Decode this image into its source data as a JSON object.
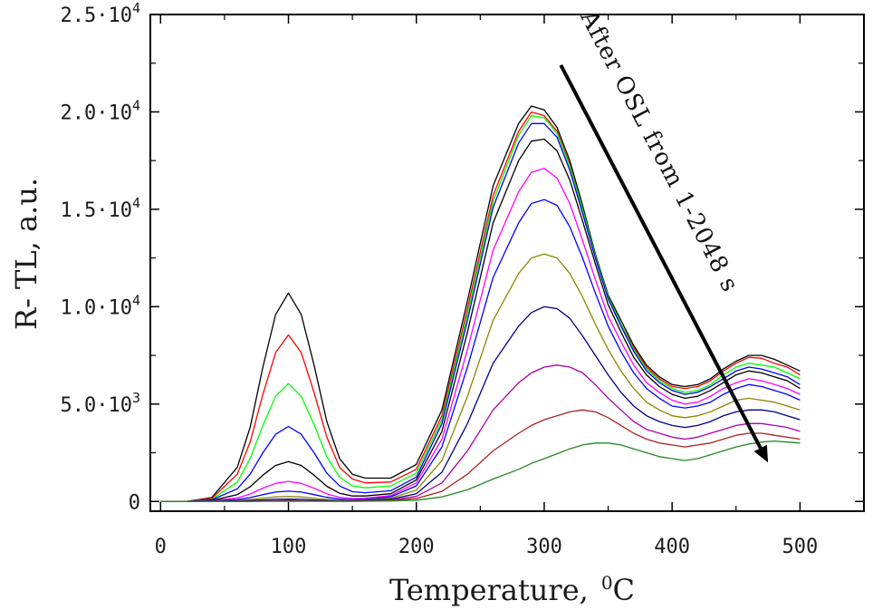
{
  "chart_data": {
    "type": "line",
    "title": "",
    "xlabel": "Temperature,",
    "xlabel_unit_sup": "0",
    "xlabel_unit": "C",
    "ylabel": "R-  TL,  a.u.",
    "xlim": [
      -8,
      550
    ],
    "ylim": [
      -500,
      25000
    ],
    "grid": false,
    "legend": "none",
    "x_ticks": [
      {
        "value": 0,
        "label": "0"
      },
      {
        "value": 100,
        "label": "100"
      },
      {
        "value": 200,
        "label": "200"
      },
      {
        "value": 300,
        "label": "300"
      },
      {
        "value": 400,
        "label": "400"
      },
      {
        "value": 500,
        "label": "500"
      }
    ],
    "y_ticks": [
      {
        "value": 0,
        "mant": "0",
        "exp": ""
      },
      {
        "value": 5000,
        "mant": "5.0·10",
        "exp": "3"
      },
      {
        "value": 10000,
        "mant": "1.0·10",
        "exp": "4"
      },
      {
        "value": 15000,
        "mant": "1.5·10",
        "exp": "4"
      },
      {
        "value": 20000,
        "mant": "2.0·10",
        "exp": "4"
      },
      {
        "value": 25000,
        "mant": "2.5·10",
        "exp": "4"
      }
    ],
    "annotation": {
      "text": "After OSL from 1-2048 s",
      "arrow_from": [
        313,
        22400
      ],
      "arrow_to": [
        475,
        2000
      ]
    },
    "x": [
      0,
      20,
      40,
      60,
      70,
      80,
      90,
      100,
      110,
      120,
      130,
      140,
      150,
      160,
      180,
      200,
      220,
      240,
      260,
      280,
      290,
      300,
      310,
      320,
      330,
      340,
      350,
      360,
      370,
      380,
      390,
      400,
      410,
      420,
      430,
      440,
      450,
      460,
      470,
      480,
      490,
      500
    ],
    "series": [
      {
        "color": "#000000",
        "values": [
          0,
          0,
          200,
          1750,
          3800,
          6900,
          9600,
          10700,
          9600,
          7000,
          4100,
          2200,
          1400,
          1200,
          1200,
          1900,
          4700,
          10300,
          16200,
          19400,
          20300,
          20100,
          19200,
          17500,
          15200,
          12700,
          10600,
          9300,
          8000,
          7000,
          6400,
          6000,
          5900,
          6000,
          6300,
          6800,
          7200,
          7500,
          7500,
          7300,
          7000,
          6700
        ]
      },
      {
        "color": "#ff0000",
        "values": [
          0,
          0,
          150,
          1400,
          3050,
          5500,
          7650,
          8550,
          7650,
          5600,
          3300,
          1750,
          1150,
          950,
          1000,
          1650,
          4400,
          9900,
          15700,
          19000,
          20000,
          19800,
          19000,
          17300,
          15000,
          12600,
          10500,
          9100,
          7900,
          6900,
          6300,
          5900,
          5800,
          5900,
          6200,
          6700,
          7100,
          7400,
          7350,
          7100,
          6900,
          6500
        ]
      },
      {
        "color": "#00ff00",
        "values": [
          0,
          0,
          100,
          1000,
          2200,
          3900,
          5400,
          6050,
          5400,
          3950,
          2300,
          1250,
          800,
          700,
          800,
          1450,
          4200,
          9600,
          15400,
          18800,
          19800,
          19700,
          18900,
          17200,
          15000,
          12600,
          10500,
          9100,
          7800,
          6800,
          6200,
          5800,
          5600,
          5700,
          6000,
          6500,
          6900,
          7100,
          7000,
          6900,
          6600,
          6300
        ]
      },
      {
        "color": "#0000ff",
        "values": [
          0,
          0,
          80,
          650,
          1400,
          2500,
          3450,
          3850,
          3450,
          2500,
          1450,
          800,
          500,
          450,
          550,
          1250,
          4000,
          9300,
          15100,
          18400,
          19400,
          19400,
          18700,
          17000,
          14800,
          12500,
          10400,
          9000,
          7700,
          6700,
          6100,
          5700,
          5500,
          5600,
          5900,
          6300,
          6700,
          6900,
          6800,
          6600,
          6400,
          6000
        ]
      },
      {
        "color": "#000000",
        "values": [
          0,
          0,
          50,
          350,
          750,
          1350,
          1850,
          2050,
          1850,
          1350,
          780,
          420,
          280,
          280,
          400,
          1100,
          3600,
          8700,
          14300,
          17500,
          18500,
          18600,
          18000,
          16500,
          14400,
          12200,
          10100,
          8700,
          7400,
          6500,
          5900,
          5500,
          5300,
          5400,
          5700,
          6100,
          6500,
          6700,
          6600,
          6400,
          6200,
          5800
        ]
      },
      {
        "color": "#ff00ff",
        "values": [
          0,
          0,
          30,
          180,
          380,
          680,
          930,
          1030,
          930,
          680,
          390,
          210,
          150,
          170,
          300,
          950,
          3200,
          7800,
          12900,
          15900,
          16900,
          17100,
          16600,
          15300,
          13400,
          11400,
          9500,
          8200,
          7000,
          6100,
          5600,
          5200,
          5000,
          5100,
          5400,
          5800,
          6100,
          6300,
          6200,
          6000,
          5800,
          5500
        ]
      },
      {
        "color": "#0000ff",
        "values": [
          0,
          0,
          20,
          100,
          200,
          350,
          480,
          530,
          480,
          350,
          210,
          120,
          90,
          110,
          240,
          800,
          2800,
          6900,
          11500,
          14300,
          15300,
          15500,
          15200,
          14100,
          12500,
          10700,
          9000,
          7700,
          6600,
          5800,
          5300,
          4900,
          4800,
          4900,
          5100,
          5500,
          5800,
          6000,
          5900,
          5700,
          5500,
          5200
        ]
      },
      {
        "color": "#888800",
        "values": [
          0,
          0,
          10,
          50,
          100,
          170,
          230,
          260,
          230,
          170,
          100,
          60,
          50,
          70,
          170,
          580,
          2100,
          5400,
          9300,
          11700,
          12500,
          12700,
          12500,
          11700,
          10500,
          9100,
          7800,
          6700,
          5800,
          5100,
          4700,
          4400,
          4300,
          4400,
          4600,
          4900,
          5200,
          5300,
          5200,
          5100,
          4900,
          4700
        ]
      },
      {
        "color": "#000088",
        "values": [
          0,
          0,
          5,
          25,
          50,
          80,
          110,
          120,
          110,
          80,
          50,
          30,
          30,
          50,
          120,
          400,
          1500,
          4000,
          7100,
          9000,
          9700,
          10000,
          9900,
          9400,
          8500,
          7500,
          6500,
          5600,
          4900,
          4400,
          4100,
          3900,
          3800,
          3900,
          4100,
          4400,
          4600,
          4700,
          4700,
          4600,
          4400,
          4200
        ]
      },
      {
        "color": "#aa00aa",
        "values": [
          0,
          0,
          0,
          10,
          20,
          30,
          40,
          45,
          40,
          30,
          20,
          15,
          15,
          30,
          80,
          260,
          950,
          2600,
          4700,
          6100,
          6600,
          6900,
          7000,
          6900,
          6600,
          6000,
          5300,
          4700,
          4100,
          3700,
          3500,
          3300,
          3200,
          3300,
          3500,
          3700,
          3900,
          4000,
          4000,
          3900,
          3800,
          3600
        ]
      },
      {
        "color": "#aa2222",
        "values": [
          0,
          0,
          0,
          5,
          10,
          15,
          20,
          20,
          20,
          15,
          10,
          10,
          10,
          20,
          50,
          150,
          520,
          1400,
          2600,
          3500,
          3900,
          4200,
          4400,
          4600,
          4700,
          4600,
          4300,
          3900,
          3500,
          3200,
          3000,
          2900,
          2800,
          2900,
          3000,
          3200,
          3400,
          3500,
          3500,
          3400,
          3300,
          3200
        ]
      },
      {
        "color": "#228822",
        "values": [
          0,
          0,
          0,
          0,
          0,
          5,
          5,
          5,
          5,
          5,
          5,
          5,
          5,
          10,
          25,
          70,
          230,
          600,
          1150,
          1650,
          1950,
          2200,
          2450,
          2700,
          2900,
          3000,
          3000,
          2900,
          2700,
          2500,
          2300,
          2200,
          2100,
          2200,
          2400,
          2600,
          2800,
          2950,
          3050,
          3100,
          3050,
          3000
        ]
      }
    ]
  }
}
